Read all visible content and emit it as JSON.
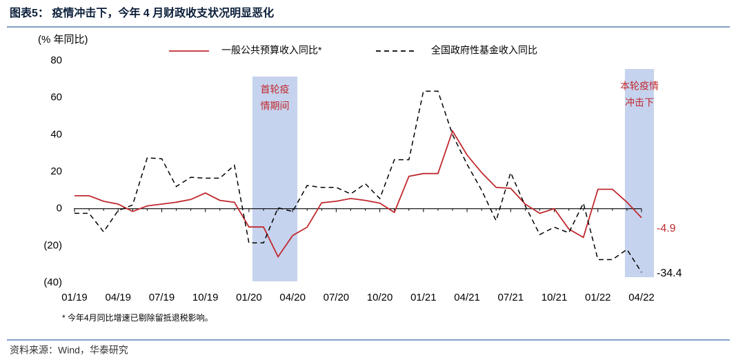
{
  "chart_data": {
    "type": "line",
    "title": "图表5：  疫情冲击下，今年 4 月财政收支状况明显恶化",
    "y_label": "(% 年同比)",
    "footnote": "* 今年4月同比增速已剔除留抵退税影响。",
    "source": "资料来源：Wind，华泰研究",
    "categories": [
      "01/19",
      null,
      null,
      "04/19",
      null,
      null,
      "07/19",
      null,
      null,
      "10/19",
      null,
      null,
      "01/20",
      null,
      null,
      "04/20",
      null,
      null,
      "07/20",
      null,
      null,
      "10/20",
      null,
      null,
      "01/21",
      null,
      null,
      "04/21",
      null,
      null,
      "07/21",
      null,
      null,
      "10/21",
      null,
      null,
      "01/22",
      null,
      null,
      "04/22"
    ],
    "series": [
      {
        "name": "一般公共预算收入同比*",
        "color": "#c0282d",
        "dash": false,
        "values": [
          7,
          7,
          4,
          2.5,
          -1.5,
          1.5,
          2.5,
          3.5,
          5,
          8.5,
          4.5,
          3.5,
          -9.9,
          -9.9,
          -26,
          -14.5,
          -10,
          3.2,
          4,
          5.5,
          4.5,
          3,
          -2,
          17.5,
          19,
          19,
          42,
          29,
          19.5,
          11.5,
          11,
          2.5,
          -2.5,
          0,
          -11,
          -15.5,
          10.5,
          10.5,
          3.5,
          -4.9
        ]
      },
      {
        "name": "全国政府性基金收入同比",
        "color": "#000000",
        "dash": true,
        "values": [
          -2.5,
          -2.5,
          -12.5,
          -1,
          2,
          27.5,
          27,
          12,
          17,
          16.5,
          16.5,
          23.5,
          -18.5,
          -18.5,
          0.5,
          -1.5,
          12.5,
          11.5,
          11.5,
          8,
          13.5,
          5.5,
          26.5,
          26.5,
          63.5,
          63.5,
          40,
          24,
          10,
          -6.5,
          19.5,
          1.5,
          -14,
          -10,
          -13,
          3,
          -27.5,
          -27.5,
          -22,
          -34.4
        ]
      }
    ],
    "ylim": [
      -40,
      80
    ],
    "yticks": [
      80,
      60,
      40,
      20,
      0,
      {
        "value": -20,
        "label": "(20)"
      },
      {
        "value": -40,
        "label": "(40)"
      }
    ],
    "grid": false,
    "annotations": [
      {
        "lines": [
          "首轮疫",
          "情期间"
        ],
        "color": "#c0282d"
      },
      {
        "lines": [
          "本轮疫情",
          "冲击下"
        ],
        "color": "#c0282d"
      }
    ]
  }
}
